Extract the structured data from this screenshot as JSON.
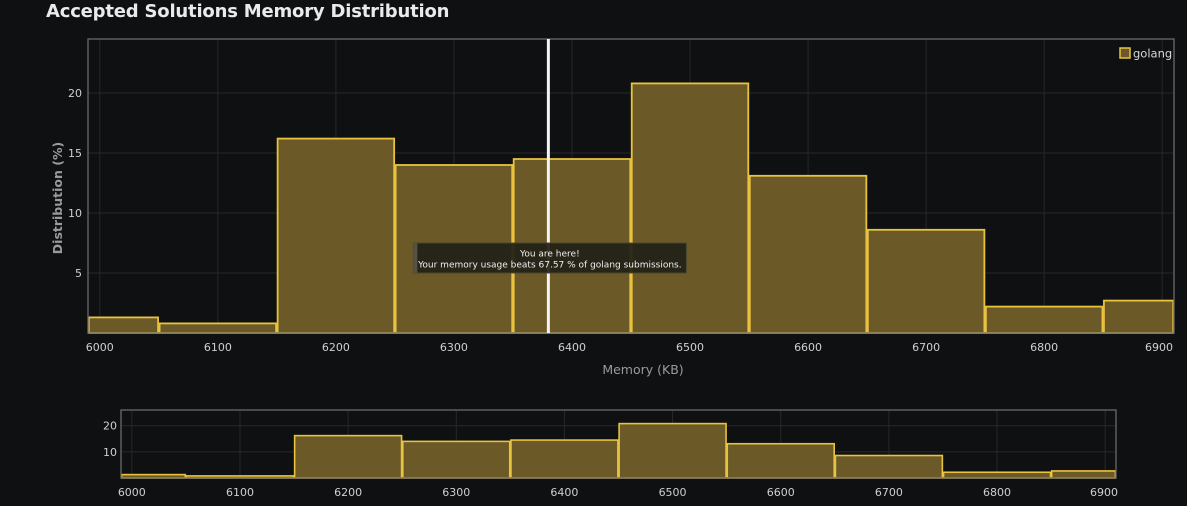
{
  "page": {
    "title": "Accepted Solutions Memory Distribution"
  },
  "colors": {
    "background": "#0f1012",
    "bar_fill": "#6b5a28",
    "bar_stroke": "#e9c23f",
    "marker": "#f2f2f2",
    "grid": "#26282b",
    "frame": "#6a6a6a"
  },
  "chart_data": [
    {
      "type": "bar",
      "title": "Accepted Solutions Memory Distribution",
      "xlabel": "Memory (KB)",
      "ylabel": "Distribution (%)",
      "xlim": [
        5990,
        6910
      ],
      "ylim": [
        0,
        24.5
      ],
      "x_ticks": [
        6000,
        6100,
        6200,
        6300,
        6400,
        6500,
        6600,
        6700,
        6800,
        6900
      ],
      "y_ticks": [
        5,
        10,
        15,
        20
      ],
      "series": [
        {
          "name": "golang",
          "bins": [
            {
              "start": 5990,
              "end": 6050,
              "value": 1.3
            },
            {
              "start": 6050,
              "end": 6150,
              "value": 0.8
            },
            {
              "start": 6150,
              "end": 6250,
              "value": 16.2
            },
            {
              "start": 6250,
              "end": 6350,
              "value": 14.0
            },
            {
              "start": 6350,
              "end": 6450,
              "value": 14.5
            },
            {
              "start": 6450,
              "end": 6550,
              "value": 20.8
            },
            {
              "start": 6550,
              "end": 6650,
              "value": 13.1
            },
            {
              "start": 6650,
              "end": 6750,
              "value": 8.6
            },
            {
              "start": 6750,
              "end": 6850,
              "value": 2.2
            },
            {
              "start": 6850,
              "end": 6910,
              "value": 2.7
            }
          ]
        }
      ],
      "legend": {
        "position": "top-right",
        "entries": [
          "golang"
        ]
      },
      "marker": {
        "x": 6380
      },
      "tooltip": {
        "line1": "You are here!",
        "line2": "Your memory usage beats 67.57 % of golang submissions."
      },
      "grid": true
    },
    {
      "type": "bar",
      "title": "",
      "xlabel": "",
      "ylabel": "",
      "xlim": [
        5990,
        6910
      ],
      "ylim": [
        0,
        26
      ],
      "x_ticks": [
        6000,
        6100,
        6200,
        6300,
        6400,
        6500,
        6600,
        6700,
        6800,
        6900
      ],
      "y_ticks": [
        10,
        20
      ],
      "grid": true
    }
  ]
}
